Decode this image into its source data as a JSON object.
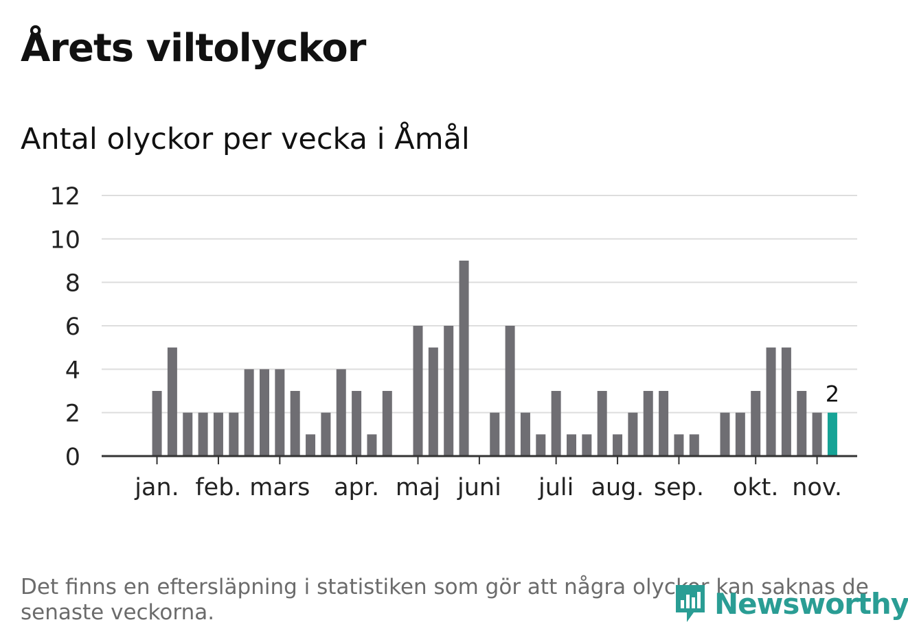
{
  "title": "Årets viltolyckor",
  "subtitle": "Antal olyckor per vecka i Åmål",
  "footnote": "Det finns en eftersläpning i statistiken som gör att några olyckor kan saknas de senaste veckorna.",
  "brand": {
    "name": "Newsworthy",
    "color": "#2a9d94"
  },
  "chart_data": {
    "type": "bar",
    "title": "Antal olyckor per vecka i Åmål",
    "xlabel": "",
    "ylabel": "",
    "ylim": [
      0,
      12
    ],
    "yticks": [
      0,
      2,
      4,
      6,
      8,
      10,
      12
    ],
    "grid": true,
    "weeks": [
      1,
      2,
      3,
      4,
      5,
      6,
      7,
      8,
      9,
      10,
      11,
      12,
      13,
      14,
      15,
      16,
      17,
      18,
      19,
      20,
      21,
      22,
      23,
      24,
      25,
      26,
      27,
      28,
      29,
      30,
      31,
      32,
      33,
      34,
      35,
      36,
      37,
      38,
      39,
      40,
      41,
      42,
      43,
      44,
      45,
      46,
      47,
      48,
      49,
      50
    ],
    "values": [
      0,
      0,
      0,
      3,
      5,
      2,
      2,
      2,
      2,
      4,
      4,
      4,
      3,
      1,
      2,
      4,
      3,
      1,
      3,
      0,
      6,
      5,
      6,
      9,
      0,
      2,
      6,
      2,
      1,
      3,
      1,
      1,
      3,
      1,
      2,
      3,
      3,
      1,
      1,
      0,
      2,
      2,
      3,
      5,
      5,
      3,
      2,
      2,
      0,
      0
    ],
    "highlight_index": 47,
    "highlight_label": "2",
    "bar_color": "#6f6e73",
    "highlight_color": "#16a396",
    "month_labels": [
      {
        "label": "jan.",
        "week": 4
      },
      {
        "label": "feb.",
        "week": 8
      },
      {
        "label": "mars",
        "week": 12
      },
      {
        "label": "apr.",
        "week": 17
      },
      {
        "label": "maj",
        "week": 21
      },
      {
        "label": "juni",
        "week": 25
      },
      {
        "label": "juli",
        "week": 30
      },
      {
        "label": "aug.",
        "week": 34
      },
      {
        "label": "sep.",
        "week": 38
      },
      {
        "label": "okt.",
        "week": 43
      },
      {
        "label": "nov.",
        "week": 47
      }
    ]
  }
}
